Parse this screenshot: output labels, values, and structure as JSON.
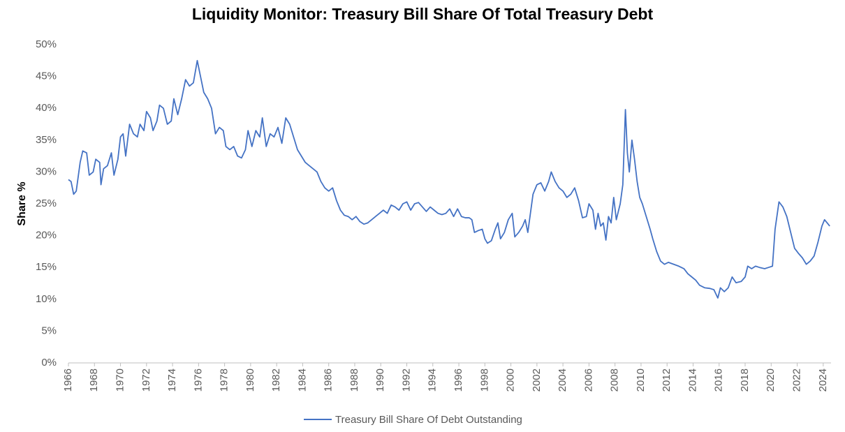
{
  "chart_data": {
    "type": "line",
    "title": "Liquidity Monitor: Treasury Bill Share Of Total Treasury Debt",
    "y_label": "Share %",
    "x": [
      1966.0,
      1966.2,
      1966.4,
      1966.6,
      1966.9,
      1967.1,
      1967.4,
      1967.6,
      1967.9,
      1968.1,
      1968.4,
      1968.5,
      1968.7,
      1969.0,
      1969.3,
      1969.5,
      1969.8,
      1970.0,
      1970.2,
      1970.4,
      1970.7,
      1971.0,
      1971.3,
      1971.5,
      1971.8,
      1972.0,
      1972.3,
      1972.5,
      1972.8,
      1973.0,
      1973.3,
      1973.6,
      1973.9,
      1974.1,
      1974.4,
      1974.7,
      1975.0,
      1975.3,
      1975.6,
      1975.9,
      1976.1,
      1976.4,
      1976.7,
      1977.0,
      1977.3,
      1977.6,
      1977.9,
      1978.1,
      1978.4,
      1978.7,
      1979.0,
      1979.3,
      1979.6,
      1979.8,
      1980.1,
      1980.4,
      1980.7,
      1980.9,
      1981.2,
      1981.5,
      1981.8,
      1982.1,
      1982.4,
      1982.7,
      1983.0,
      1983.3,
      1983.6,
      1983.9,
      1984.2,
      1984.5,
      1984.8,
      1985.1,
      1985.4,
      1985.7,
      1986.0,
      1986.3,
      1986.6,
      1986.9,
      1987.2,
      1987.5,
      1987.8,
      1988.1,
      1988.4,
      1988.7,
      1989.0,
      1989.3,
      1989.6,
      1989.9,
      1990.2,
      1990.5,
      1990.8,
      1991.1,
      1991.4,
      1991.7,
      1992.0,
      1992.3,
      1992.6,
      1992.9,
      1993.2,
      1993.5,
      1993.8,
      1994.1,
      1994.4,
      1994.7,
      1995.0,
      1995.3,
      1995.6,
      1995.9,
      1996.2,
      1996.5,
      1996.8,
      1997.0,
      1997.2,
      1997.5,
      1997.8,
      1998.0,
      1998.2,
      1998.5,
      1998.8,
      1999.0,
      1999.2,
      1999.5,
      1999.8,
      2000.1,
      2000.3,
      2000.6,
      2000.9,
      2001.1,
      2001.3,
      2001.5,
      2001.7,
      2002.0,
      2002.3,
      2002.6,
      2002.9,
      2003.1,
      2003.4,
      2003.7,
      2004.0,
      2004.3,
      2004.6,
      2004.9,
      2005.2,
      2005.5,
      2005.8,
      2006.0,
      2006.3,
      2006.5,
      2006.7,
      2006.9,
      2007.1,
      2007.3,
      2007.5,
      2007.7,
      2007.9,
      2008.1,
      2008.4,
      2008.6,
      2008.8,
      2008.95,
      2009.1,
      2009.3,
      2009.5,
      2009.7,
      2009.9,
      2010.1,
      2010.4,
      2010.7,
      2010.9,
      2011.2,
      2011.5,
      2011.8,
      2012.1,
      2012.5,
      2012.9,
      2013.3,
      2013.6,
      2013.9,
      2014.2,
      2014.5,
      2014.9,
      2015.3,
      2015.6,
      2015.9,
      2016.1,
      2016.4,
      2016.7,
      2017.0,
      2017.3,
      2017.7,
      2018.0,
      2018.2,
      2018.5,
      2018.8,
      2019.1,
      2019.5,
      2019.8,
      2020.1,
      2020.3,
      2020.6,
      2020.9,
      2021.2,
      2021.5,
      2021.8,
      2022.1,
      2022.4,
      2022.7,
      2023.0,
      2023.3,
      2023.6,
      2023.9,
      2024.1,
      2024.3,
      2024.5
    ],
    "series": [
      {
        "name": "Treasury Bill Share Of Debt Outstanding",
        "color": "#4472c4",
        "values": [
          28.8,
          28.5,
          26.5,
          27,
          31.5,
          33.3,
          33,
          29.5,
          30,
          32,
          31.5,
          28,
          30.5,
          31,
          33,
          29.5,
          32,
          35.5,
          36,
          32.5,
          37.5,
          36,
          35.5,
          37.5,
          36.5,
          39.5,
          38.5,
          36.5,
          38,
          40.5,
          40,
          37.5,
          38,
          41.5,
          39,
          41.5,
          44.5,
          43.5,
          44,
          47.5,
          45.5,
          42.5,
          41.5,
          40,
          36,
          37,
          36.5,
          34,
          33.5,
          34,
          32.5,
          32.2,
          33.5,
          36.5,
          34,
          36.5,
          35.5,
          38.5,
          34,
          36,
          35.5,
          37,
          34.5,
          38.5,
          37.5,
          35.5,
          33.5,
          32.5,
          31.5,
          31,
          30.5,
          30,
          28.5,
          27.5,
          27,
          27.5,
          25.5,
          24,
          23.2,
          23,
          22.5,
          23,
          22.2,
          21.8,
          22,
          22.5,
          23,
          23.5,
          24,
          23.5,
          24.8,
          24.5,
          24,
          25,
          25.3,
          24,
          25,
          25.2,
          24.5,
          23.8,
          24.5,
          24,
          23.5,
          23.3,
          23.5,
          24.2,
          23,
          24.2,
          23,
          22.8,
          22.8,
          22.5,
          20.5,
          20.8,
          21,
          19.5,
          18.8,
          19.2,
          21,
          22,
          19.5,
          20.5,
          22.5,
          23.5,
          19.8,
          20.5,
          21.5,
          22.5,
          20.5,
          23.5,
          26.5,
          28,
          28.3,
          27,
          28.5,
          30,
          28.5,
          27.5,
          27,
          26,
          26.5,
          27.5,
          25.5,
          22.8,
          23,
          25,
          24,
          21,
          23.5,
          21.5,
          22,
          19.3,
          23,
          22,
          26,
          22.5,
          25,
          28,
          39.8,
          33,
          30,
          35,
          32,
          28.5,
          26,
          25,
          23,
          21,
          19.5,
          17.5,
          16,
          15.5,
          15.8,
          15.5,
          15.2,
          14.8,
          14,
          13.5,
          13,
          12.2,
          11.8,
          11.7,
          11.5,
          10.2,
          11.8,
          11.2,
          11.8,
          13.5,
          12.6,
          12.8,
          13.5,
          15.2,
          14.8,
          15.2,
          15,
          14.8,
          15,
          15.2,
          21,
          25.3,
          24.5,
          23,
          20.5,
          18,
          17.2,
          16.5,
          15.5,
          16,
          16.8,
          19,
          21.5,
          22.5,
          22,
          21.5
        ]
      }
    ],
    "xlim": [
      1966,
      2024.6
    ],
    "xticks": [
      1966,
      1968,
      1970,
      1972,
      1974,
      1976,
      1978,
      1980,
      1982,
      1984,
      1986,
      1988,
      1990,
      1992,
      1994,
      1996,
      1998,
      2000,
      2002,
      2004,
      2006,
      2008,
      2010,
      2012,
      2014,
      2016,
      2018,
      2020,
      2022,
      2024
    ],
    "ylim": [
      0,
      50
    ],
    "yticks": [
      {
        "value": 0,
        "label": "0%"
      },
      {
        "value": 5,
        "label": "5%"
      },
      {
        "value": 10,
        "label": "10%"
      },
      {
        "value": 15,
        "label": "15%"
      },
      {
        "value": 20,
        "label": "20%"
      },
      {
        "value": 25,
        "label": "25%"
      },
      {
        "value": 30,
        "label": "30%"
      },
      {
        "value": 35,
        "label": "35%"
      },
      {
        "value": 40,
        "label": "40%"
      },
      {
        "value": 45,
        "label": "45%"
      },
      {
        "value": 50,
        "label": "50%"
      }
    ],
    "grid": false,
    "legend": "bottom"
  }
}
